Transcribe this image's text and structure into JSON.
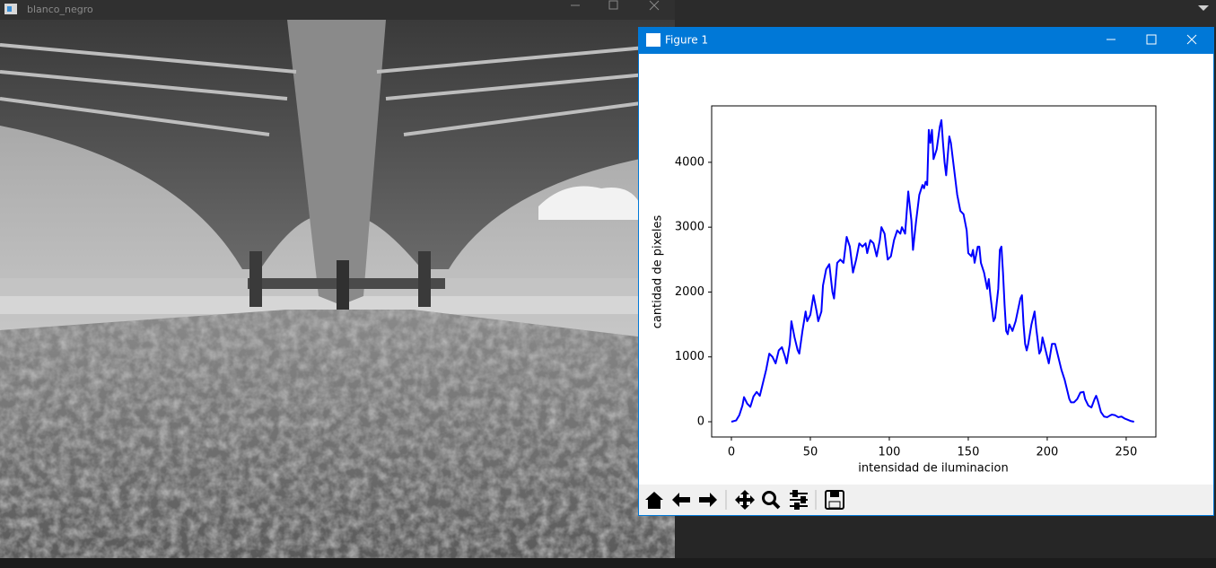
{
  "windows": [
    {
      "title": "blanco_negro"
    },
    {
      "title": "Figure 1"
    }
  ],
  "chart_data": {
    "type": "line",
    "xlabel": "intensidad de iluminacion",
    "ylabel": "cantidad de pixeles",
    "x": [
      0,
      3,
      5,
      7,
      8,
      10,
      12,
      14,
      16,
      18,
      20,
      22,
      24,
      26,
      28,
      30,
      32,
      34,
      35,
      37,
      38,
      40,
      42,
      43,
      45,
      47,
      48,
      50,
      52,
      54,
      55,
      57,
      58,
      60,
      62,
      64,
      65,
      67,
      69,
      71,
      73,
      75,
      77,
      79,
      81,
      83,
      85,
      86,
      88,
      90,
      92,
      94,
      95,
      97,
      99,
      101,
      103,
      105,
      107,
      108,
      110,
      112,
      114,
      115,
      117,
      119,
      121,
      122,
      123,
      124,
      125,
      126,
      127,
      128,
      130,
      132,
      133,
      134,
      135,
      136,
      137,
      138,
      139,
      141,
      143,
      145,
      147,
      149,
      150,
      152,
      153,
      154,
      156,
      157,
      158,
      160,
      162,
      163,
      164,
      166,
      167,
      169,
      170,
      171,
      172,
      173,
      174,
      175,
      176,
      178,
      180,
      183,
      184,
      185,
      186,
      187,
      188,
      190,
      192,
      193,
      195,
      196,
      197,
      198,
      200,
      201,
      203,
      205,
      206,
      207,
      209,
      211,
      212,
      214,
      215,
      217,
      219,
      221,
      223,
      224,
      226,
      228,
      230,
      231,
      232,
      234,
      236,
      238,
      240,
      241,
      243,
      245,
      247,
      249,
      251,
      253,
      255
    ],
    "values": [
      0,
      20,
      100,
      250,
      380,
      280,
      230,
      390,
      460,
      400,
      600,
      800,
      1050,
      1000,
      900,
      1100,
      1150,
      1000,
      900,
      1200,
      1550,
      1300,
      1100,
      1050,
      1400,
      1700,
      1550,
      1650,
      1950,
      1700,
      1550,
      1700,
      2100,
      2350,
      2430,
      2000,
      1900,
      2450,
      2500,
      2450,
      2850,
      2700,
      2300,
      2500,
      2750,
      2700,
      2750,
      2600,
      2800,
      2750,
      2550,
      2800,
      3000,
      2900,
      2500,
      2550,
      2800,
      2950,
      2900,
      3000,
      2900,
      3550,
      3100,
      2650,
      3100,
      3500,
      3650,
      3600,
      3700,
      3650,
      4500,
      4300,
      4500,
      4050,
      4200,
      4550,
      4650,
      4300,
      4000,
      3800,
      4100,
      4400,
      4300,
      3900,
      3500,
      3250,
      3200,
      2950,
      2600,
      2550,
      2650,
      2450,
      2700,
      2700,
      2450,
      2300,
      2050,
      2200,
      1950,
      1550,
      1600,
      2050,
      2650,
      2700,
      2300,
      1800,
      1400,
      1350,
      1500,
      1400,
      1550,
      1900,
      1950,
      1500,
      1200,
      1100,
      1200,
      1500,
      1700,
      1450,
      1050,
      1100,
      1300,
      1200,
      1000,
      900,
      1200,
      1200,
      1100,
      1000,
      800,
      650,
      550,
      350,
      300,
      300,
      350,
      450,
      460,
      350,
      250,
      220,
      350,
      400,
      330,
      150,
      80,
      70,
      100,
      110,
      100,
      70,
      80,
      50,
      30,
      10,
      0
    ],
    "color": "#0000ff",
    "xlim": [
      -12.5,
      268.8
    ],
    "ylim": [
      -235,
      4870
    ],
    "xticks": [
      0,
      50,
      100,
      150,
      200,
      250
    ],
    "yticks": [
      0,
      1000,
      2000,
      3000,
      4000
    ]
  }
}
